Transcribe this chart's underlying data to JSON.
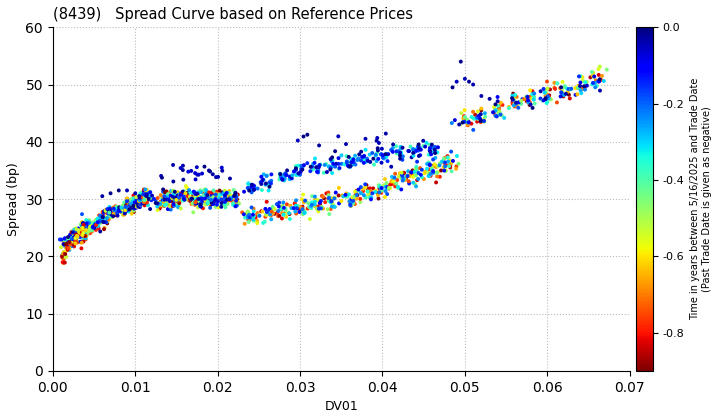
{
  "title": "(8439)   Spread Curve based on Reference Prices",
  "xlabel": "DV01",
  "ylabel": "Spread (bp)",
  "xlim": [
    0.0,
    0.07
  ],
  "ylim": [
    0,
    60
  ],
  "xticks": [
    0.0,
    0.01,
    0.02,
    0.03,
    0.04,
    0.05,
    0.06,
    0.07
  ],
  "yticks": [
    0,
    10,
    20,
    30,
    40,
    50,
    60
  ],
  "colorbar_label": "Time in years between 5/16/2025 and Trade Date\n(Past Trade Date is given as negative)",
  "colorbar_vmin": -0.9,
  "colorbar_vmax": 0.0,
  "colorbar_ticks": [
    0.0,
    -0.2,
    -0.4,
    -0.6,
    -0.8
  ],
  "background_color": "#ffffff",
  "grid_color": "#bbbbbb",
  "cmap": "jet_r",
  "marker_size": 8
}
